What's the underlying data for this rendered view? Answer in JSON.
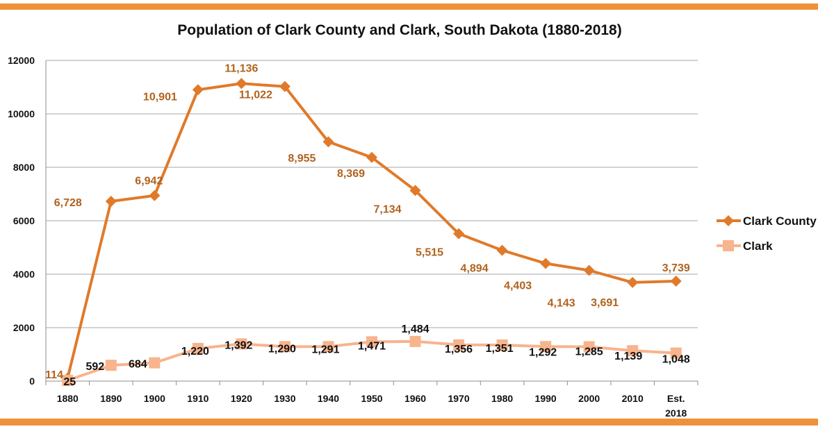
{
  "chart_data": {
    "type": "line",
    "title": "Population of Clark County and Clark, South Dakota (1880-2018)",
    "xlabel": "",
    "ylabel": "",
    "categories": [
      "1880",
      "1890",
      "1900",
      "1910",
      "1920",
      "1930",
      "1940",
      "1950",
      "1960",
      "1970",
      "1980",
      "1990",
      "2000",
      "2010",
      "Est. 2018"
    ],
    "yticks": [
      "0",
      "2000",
      "4000",
      "6000",
      "8000",
      "10000",
      "12000"
    ],
    "ylim": [
      0,
      12000
    ],
    "grid": true,
    "legend_position": "right",
    "series": [
      {
        "name": "Clark County",
        "color": "#e07a2a",
        "label_color": "#b0631e",
        "marker": "diamond",
        "values": [
          114,
          6728,
          6942,
          10901,
          11136,
          11022,
          8955,
          8369,
          7134,
          5515,
          4894,
          4403,
          4143,
          3691,
          3739
        ],
        "labels": [
          "114",
          "6,728",
          "6,942",
          "10,901",
          "11,136",
          "11,022",
          "8,955",
          "8,369",
          "7,134",
          "5,515",
          "4,894",
          "4,403",
          "4,143",
          "3,691",
          "3,739"
        ]
      },
      {
        "name": "Clark",
        "color": "#f7b48d",
        "label_color": "#111111",
        "marker": "square",
        "values": [
          25,
          592,
          684,
          1220,
          1392,
          1290,
          1291,
          1471,
          1484,
          1356,
          1351,
          1292,
          1285,
          1139,
          1048
        ],
        "labels": [
          "25",
          "592",
          "684",
          "1,220",
          "1,392",
          "1,290",
          "1,291",
          "1,471",
          "1,484",
          "1,356",
          "1,351",
          "1,292",
          "1,285",
          "1,139",
          "1,048"
        ]
      }
    ]
  },
  "theme": {
    "band_color": "#f0913a",
    "grid_color": "#a6a6a6"
  }
}
